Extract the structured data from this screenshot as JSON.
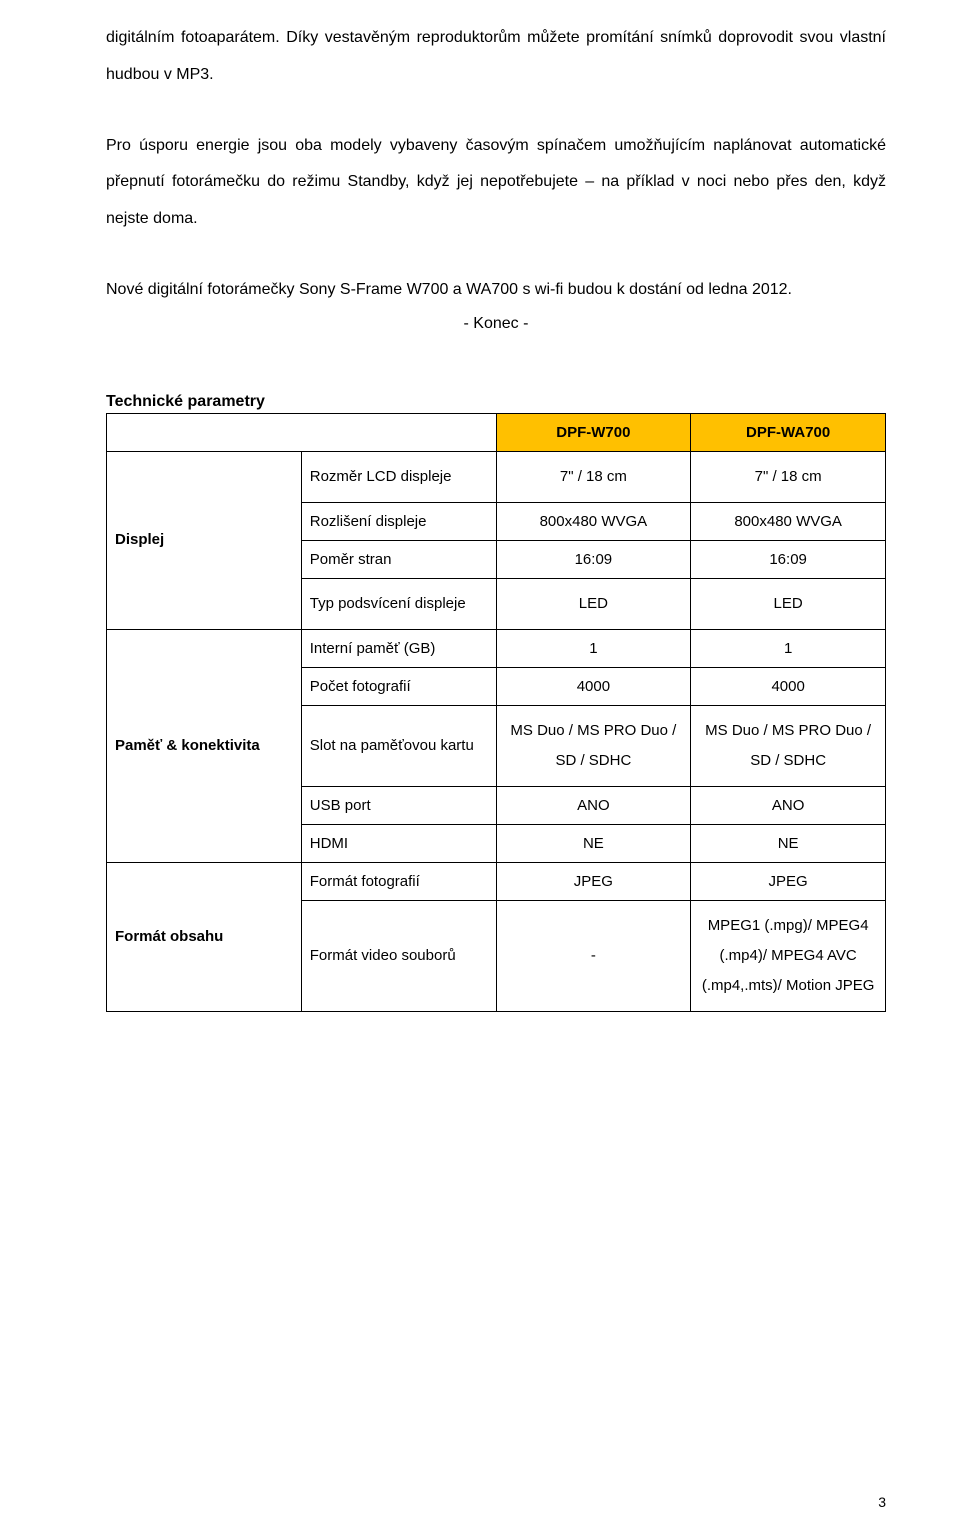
{
  "paragraphs": {
    "p1": "digitálním fotoaparátem. Díky vestavěným reproduktorům můžete promítání snímků doprovodit svou vlastní hudbou v MP3.",
    "p2": "Pro úsporu energie jsou oba modely vybaveny časovým spínačem umožňujícím naplánovat automatické přepnutí fotorámečku do režimu Standby, když jej nepotřebujete – na příklad v noci nebo přes den, když nejste doma.",
    "p3": "Nové digitální fotorámečky Sony S-Frame W700 a WA700 s wi-fi budou k dostání od ledna 2012.",
    "konec": "- Konec -"
  },
  "tech_heading": "Technické parametry",
  "table": {
    "header_bg": "#ffc000",
    "models": [
      "DPF-W700",
      "DPF-WA700"
    ],
    "sections": [
      {
        "category": "Displej",
        "rows": [
          {
            "label": "Rozměr LCD displeje",
            "v1": "7\" / 18 cm",
            "v2": "7\" / 18 cm",
            "tall": true
          },
          {
            "label": "Rozlišení displeje",
            "v1": "800x480 WVGA",
            "v2": "800x480 WVGA"
          },
          {
            "label": "Poměr stran",
            "v1": "16:09",
            "v2": "16:09"
          },
          {
            "label": "Typ podsvícení displeje",
            "v1": "LED",
            "v2": "LED",
            "tall": true
          }
        ]
      },
      {
        "category": "Paměť & konektivita",
        "rows": [
          {
            "label": "Interní paměť (GB)",
            "v1": "1",
            "v2": "1"
          },
          {
            "label": "Počet fotografií",
            "v1": "4000",
            "v2": "4000"
          },
          {
            "label": "Slot na paměťovou kartu",
            "v1": "MS Duo / MS PRO Duo / SD / SDHC",
            "v2": "MS Duo / MS PRO Duo / SD / SDHC",
            "tall": true
          },
          {
            "label": "USB port",
            "v1": "ANO",
            "v2": "ANO"
          },
          {
            "label": "HDMI",
            "v1": "NE",
            "v2": "NE"
          }
        ]
      },
      {
        "category": "Formát obsahu",
        "rows": [
          {
            "label": "Formát fotografií",
            "v1": "JPEG",
            "v2": "JPEG"
          },
          {
            "label": "Formát video souborů",
            "v1": "-",
            "v2": "MPEG1 (.mpg)/ MPEG4 (.mp4)/ MPEG4 AVC (.mp4,.mts)/ Motion JPEG",
            "tall": true
          }
        ]
      }
    ]
  },
  "page_number": "3"
}
